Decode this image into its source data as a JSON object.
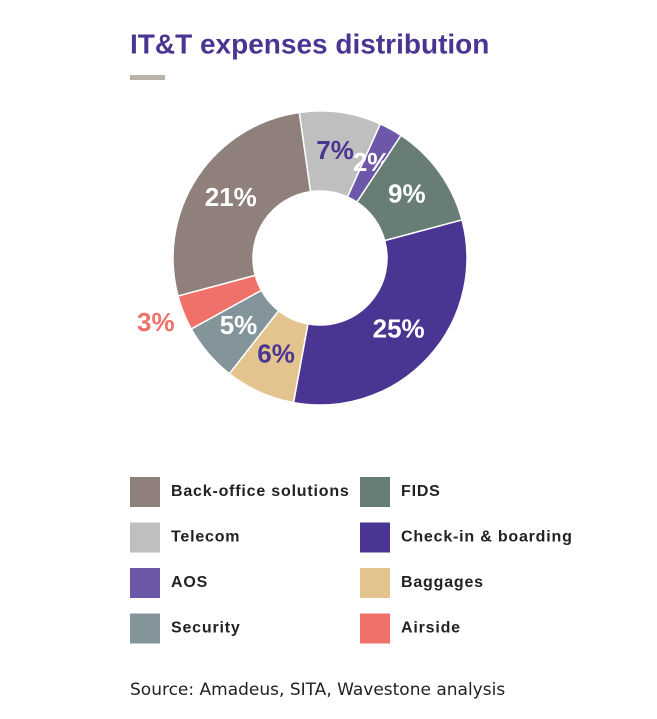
{
  "chart_data": {
    "type": "donut",
    "title": "IT&T expenses distribution",
    "categories": [
      "Back-office solutions",
      "Telecom",
      "AOS",
      "FIDS",
      "Check-in & boarding",
      "Baggages",
      "Security",
      "Airside"
    ],
    "values": [
      21,
      7,
      2,
      9,
      25,
      6,
      5,
      3
    ],
    "value_labels": [
      "21%",
      "7%",
      "2%",
      "9%",
      "25%",
      "6%",
      "5%",
      "3%"
    ],
    "colors": [
      "#8f807c",
      "#c0bfbf",
      "#6d57a8",
      "#687d73",
      "#4b3592",
      "#e3c48e",
      "#83959a",
      "#f0706a"
    ],
    "legend": "bottom",
    "source": "Source: Amadeus, SITA, Wavestone analysis"
  }
}
